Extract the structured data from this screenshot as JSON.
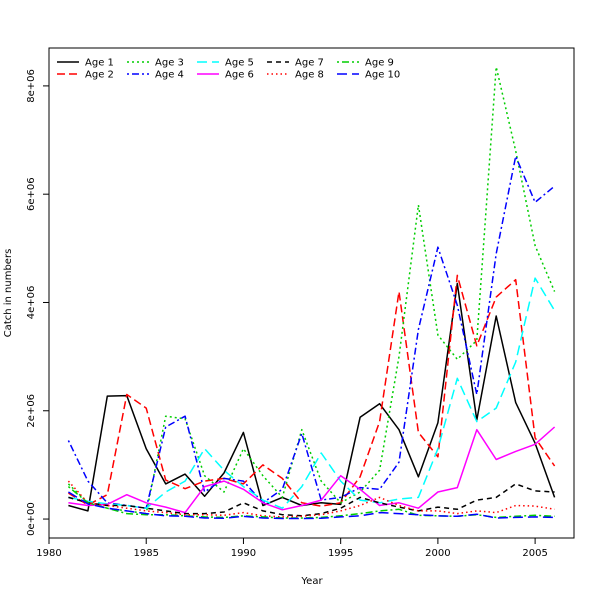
{
  "chart_data": {
    "type": "line",
    "xlabel": "Year",
    "ylabel": "Catch in numbers",
    "xlim": [
      1980,
      2007
    ],
    "ylim": [
      -350000,
      8700000
    ],
    "xticks": [
      1980,
      1985,
      1990,
      1995,
      2000,
      2005
    ],
    "yticks": [
      0,
      2000000,
      4000000,
      6000000,
      8000000
    ],
    "ytick_labels": [
      "0e+00",
      "2e+06",
      "4e+06",
      "6e+06",
      "8e+06"
    ],
    "legend_position": "top-left",
    "grid": false,
    "x": [
      1981,
      1982,
      1983,
      1984,
      1985,
      1986,
      1987,
      1988,
      1989,
      1990,
      1991,
      1992,
      1993,
      1994,
      1995,
      1996,
      1997,
      1998,
      1999,
      2000,
      2001,
      2002,
      2003,
      2004,
      2005,
      2006
    ],
    "series": [
      {
        "name": "Age 1",
        "color": "#000000",
        "dash": "solid",
        "values": [
          250000,
          150000,
          2270000,
          2280000,
          1300000,
          650000,
          830000,
          420000,
          850000,
          1600000,
          250000,
          400000,
          250000,
          300000,
          270000,
          1880000,
          2130000,
          1650000,
          780000,
          1780000,
          4350000,
          1830000,
          3750000,
          2150000,
          1400000,
          400000
        ]
      },
      {
        "name": "Age 2",
        "color": "#ff0000",
        "dash": "long",
        "values": [
          480000,
          260000,
          450000,
          2300000,
          2050000,
          720000,
          560000,
          700000,
          750000,
          650000,
          1000000,
          750000,
          300000,
          240000,
          300000,
          780000,
          1800000,
          4200000,
          1600000,
          1150000,
          4500000,
          3200000,
          4100000,
          4420000,
          1500000,
          980000
        ]
      },
      {
        "name": "Age 3",
        "color": "#00cd00",
        "dash": "dot",
        "values": [
          650000,
          300000,
          200000,
          150000,
          100000,
          1900000,
          1850000,
          800000,
          500000,
          1300000,
          800000,
          400000,
          1650000,
          700000,
          300000,
          500000,
          900000,
          3000000,
          5800000,
          3400000,
          2950000,
          3300000,
          8350000,
          6800000,
          5050000,
          4200000
        ]
      },
      {
        "name": "Age 4",
        "color": "#0000ff",
        "dash": "dotdash",
        "values": [
          1450000,
          700000,
          300000,
          250000,
          200000,
          1700000,
          1900000,
          500000,
          750000,
          700000,
          300000,
          550000,
          1580000,
          350000,
          400000,
          580000,
          550000,
          1050000,
          3500000,
          5020000,
          3950000,
          2300000,
          4900000,
          6700000,
          5850000,
          6150000
        ]
      },
      {
        "name": "Age 5",
        "color": "#00ffff",
        "dash": "longdash",
        "values": [
          400000,
          330000,
          280000,
          250000,
          200000,
          500000,
          700000,
          1300000,
          900000,
          600000,
          350000,
          200000,
          600000,
          1220000,
          700000,
          350000,
          300000,
          370000,
          400000,
          1300000,
          2600000,
          1800000,
          2050000,
          2900000,
          4450000,
          3850000
        ]
      },
      {
        "name": "Age 6",
        "color": "#ff00ff",
        "dash": "solid",
        "values": [
          300000,
          250000,
          270000,
          450000,
          300000,
          220000,
          120000,
          600000,
          700000,
          550000,
          300000,
          170000,
          250000,
          350000,
          800000,
          550000,
          250000,
          300000,
          200000,
          500000,
          580000,
          1650000,
          1100000,
          1250000,
          1380000,
          1700000
        ]
      },
      {
        "name": "Age 7",
        "color": "#000000",
        "dash": "dash",
        "values": [
          400000,
          300000,
          250000,
          250000,
          200000,
          150000,
          100000,
          100000,
          130000,
          300000,
          150000,
          80000,
          60000,
          100000,
          200000,
          400000,
          300000,
          220000,
          150000,
          220000,
          180000,
          350000,
          400000,
          650000,
          520000,
          500000
        ]
      },
      {
        "name": "Age 8",
        "color": "#ff0000",
        "dash": "dotted",
        "values": [
          700000,
          300000,
          250000,
          200000,
          150000,
          120000,
          80000,
          80000,
          70000,
          120000,
          60000,
          40000,
          50000,
          80000,
          150000,
          250000,
          400000,
          250000,
          150000,
          150000,
          100000,
          150000,
          120000,
          250000,
          240000,
          180000
        ]
      },
      {
        "name": "Age 9",
        "color": "#00cd00",
        "dash": "dotdash",
        "values": [
          600000,
          300000,
          200000,
          100000,
          80000,
          80000,
          60000,
          40000,
          30000,
          60000,
          40000,
          20000,
          20000,
          30000,
          60000,
          100000,
          150000,
          180000,
          70000,
          60000,
          50000,
          80000,
          30000,
          50000,
          70000,
          50000
        ]
      },
      {
        "name": "Age 10",
        "color": "#0000ff",
        "dash": "longdash",
        "values": [
          500000,
          280000,
          200000,
          150000,
          100000,
          60000,
          50000,
          20000,
          15000,
          50000,
          20000,
          10000,
          10000,
          15000,
          40000,
          60000,
          120000,
          100000,
          80000,
          60000,
          50000,
          90000,
          20000,
          30000,
          40000,
          30000
        ]
      }
    ]
  }
}
